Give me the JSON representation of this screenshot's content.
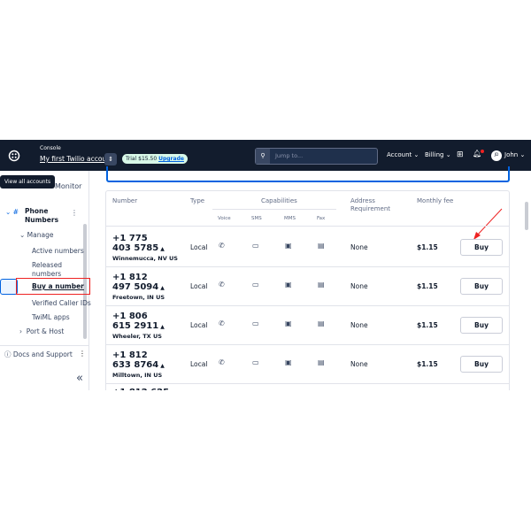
{
  "header": {
    "console": "Console",
    "account": "My first Twilio account",
    "trial": "Trial $15.50",
    "upgrade": "Upgrade",
    "search_placeholder": "Jump to...",
    "account_menu": "Account",
    "billing_menu": "Billing",
    "avatar": "JD",
    "user": "John"
  },
  "tooltip": "View all accounts",
  "sidebar": {
    "monitor": "Monitor",
    "section": "Phone Numbers",
    "group": "Manage",
    "items": [
      "Active numbers",
      "Released numbers",
      "Buy a number",
      "Verified Caller IDs",
      "TwiML apps"
    ],
    "port": "Port & Host",
    "docs": "Docs and Support",
    "collapse": "«"
  },
  "table": {
    "columns": [
      "Number",
      "Type",
      "Capabilities",
      "Address Requirement",
      "Monthly fee"
    ],
    "capabilities": [
      "Voice",
      "SMS",
      "MMS",
      "Fax"
    ],
    "rows": [
      {
        "number": "+1 775 403 5785",
        "location": "Winnemucca, NV US",
        "type": "Local",
        "address": "None",
        "fee": "$1.15",
        "action": "Buy"
      },
      {
        "number": "+1 812 497 5094",
        "location": "Freetown, IN US",
        "type": "Local",
        "address": "None",
        "fee": "$1.15",
        "action": "Buy"
      },
      {
        "number": "+1 806 615 2911",
        "location": "Wheeler, TX US",
        "type": "Local",
        "address": "None",
        "fee": "$1.15",
        "action": "Buy"
      },
      {
        "number": "+1 812 633 8764",
        "location": "Milltown, IN US",
        "type": "Local",
        "address": "None",
        "fee": "$1.15",
        "action": "Buy"
      }
    ],
    "partial_row": "+1 812 625"
  }
}
